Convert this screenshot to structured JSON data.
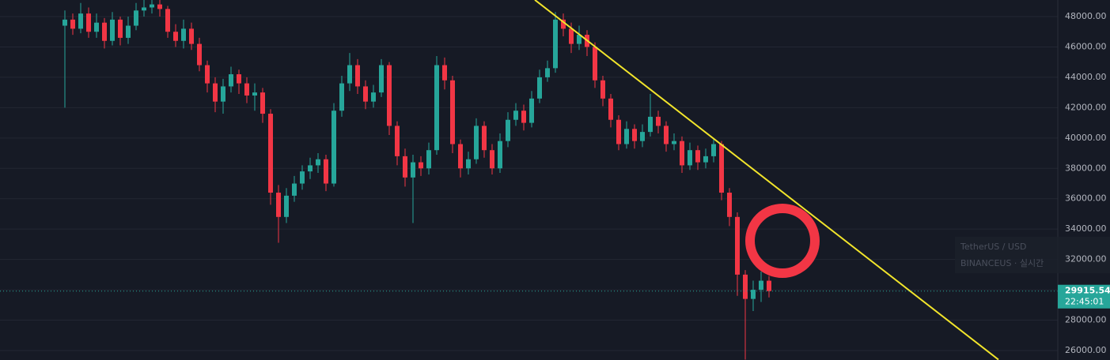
{
  "chart_data": {
    "type": "candlestick",
    "up_color": "#26a69a",
    "down_color": "#f23645",
    "grid": true,
    "xlim": [
      -8.2,
      125.5
    ],
    "ylim": [
      25376,
      49092
    ],
    "yticks": [
      {
        "value": 26000,
        "label": "26000.00"
      },
      {
        "value": 28000,
        "label": "28000.00"
      },
      {
        "value": 30000,
        "label": "30000.00"
      },
      {
        "value": 32000,
        "label": "32000.00"
      },
      {
        "value": 34000,
        "label": "34000.00"
      },
      {
        "value": 36000,
        "label": "36000.00"
      },
      {
        "value": 38000,
        "label": "38000.00"
      },
      {
        "value": 40000,
        "label": "40000.00"
      },
      {
        "value": 42000,
        "label": "42000.00"
      },
      {
        "value": 44000,
        "label": "44000.00"
      },
      {
        "value": 46000,
        "label": "46000.00"
      },
      {
        "value": 48000,
        "label": "48000.00"
      }
    ],
    "open": [
      47400,
      47800,
      47200,
      48200,
      47000,
      47600,
      46400,
      47800,
      46600,
      47400,
      48400,
      48600,
      48800,
      48500,
      47000,
      46400,
      47200,
      46200,
      44800,
      43600,
      42400,
      43400,
      44200,
      43600,
      42800,
      43000,
      41600,
      36400,
      34800,
      36200,
      37000,
      37800,
      38200,
      38600,
      37000,
      41800,
      43600,
      44800,
      43400,
      42400,
      43000,
      44800,
      40800,
      38800,
      37400,
      38400,
      38000,
      39200,
      44800,
      43800,
      39600,
      38000,
      38600,
      40800,
      39200,
      38000,
      39800,
      41200,
      41800,
      41000,
      42600,
      44000,
      44600,
      47800,
      47200,
      46200,
      46800,
      46000,
      43800,
      42600,
      41200,
      39600,
      40600,
      39800,
      40400,
      41400,
      40800,
      39600,
      39800,
      38200,
      39200,
      38400,
      38800,
      39600,
      36400,
      34800,
      31000,
      29400,
      30000,
      30600
    ],
    "high": [
      48400,
      48200,
      48900,
      48600,
      48200,
      47900,
      48300,
      48000,
      48000,
      48900,
      49100,
      49300,
      49200,
      48700,
      47500,
      47800,
      47600,
      46600,
      45100,
      44000,
      43900,
      44700,
      44500,
      44000,
      43600,
      43300,
      41900,
      36900,
      36700,
      37500,
      38200,
      38700,
      39000,
      38900,
      42300,
      44100,
      45600,
      45200,
      43800,
      43500,
      45200,
      45000,
      41100,
      39300,
      38900,
      38800,
      39700,
      45400,
      45300,
      44100,
      39900,
      39100,
      41300,
      41100,
      39600,
      40300,
      41700,
      42300,
      42200,
      43100,
      44500,
      45100,
      48300,
      48200,
      47600,
      47400,
      47100,
      46300,
      44100,
      42900,
      41500,
      41100,
      40900,
      40900,
      42900,
      41800,
      41100,
      40300,
      40100,
      39700,
      39500,
      39300,
      40000,
      39800,
      36700,
      35100,
      31300,
      30600,
      31200,
      30900
    ],
    "low": [
      42000,
      46800,
      46900,
      46600,
      46600,
      45900,
      46100,
      46100,
      46200,
      47100,
      48000,
      48200,
      48000,
      46600,
      46000,
      45900,
      45800,
      44400,
      43000,
      41700,
      41600,
      43000,
      42900,
      42300,
      41800,
      41000,
      35600,
      33100,
      34400,
      35800,
      36600,
      37300,
      37700,
      36500,
      36800,
      41400,
      43100,
      42900,
      41900,
      42000,
      42700,
      40200,
      38200,
      36800,
      34400,
      37500,
      37600,
      38900,
      43200,
      39000,
      37400,
      37600,
      38300,
      38700,
      37600,
      37700,
      39400,
      40800,
      40500,
      40700,
      42300,
      43700,
      44300,
      46700,
      45600,
      45800,
      45400,
      43300,
      42100,
      40700,
      39200,
      39300,
      39300,
      39400,
      40100,
      40300,
      39100,
      39200,
      37700,
      37900,
      37900,
      38000,
      38400,
      35900,
      34200,
      29600,
      25400,
      28600,
      29200,
      29500
    ],
    "close": [
      47800,
      47200,
      48200,
      47000,
      47600,
      46400,
      47800,
      46600,
      47400,
      48400,
      48600,
      48800,
      48500,
      47000,
      46400,
      47200,
      46200,
      44800,
      43600,
      42400,
      43400,
      44200,
      43600,
      42800,
      43000,
      41600,
      36400,
      34800,
      36200,
      37000,
      37800,
      38200,
      38600,
      37000,
      41800,
      43600,
      44800,
      43400,
      42400,
      43000,
      44800,
      40800,
      38800,
      37400,
      38400,
      38000,
      39200,
      44800,
      43800,
      39600,
      38000,
      38600,
      40800,
      39200,
      38000,
      39800,
      41200,
      41800,
      41000,
      42600,
      44000,
      44600,
      47800,
      47200,
      46200,
      46800,
      46000,
      43800,
      42600,
      41200,
      39600,
      40600,
      39800,
      40400,
      41400,
      40800,
      39600,
      39800,
      38200,
      39200,
      38400,
      38800,
      39600,
      36400,
      34800,
      31000,
      29400,
      30000,
      30600,
      29915.54
    ],
    "trendline": {
      "color": "#f2e52b",
      "x": [
        59.4,
        118
      ],
      "y": [
        49100,
        25400
      ]
    },
    "last_price": 29915.54,
    "countdown": "22:45:01",
    "symbol": "TetherUS / USD",
    "exchange": "BINANCEUS · 실시간"
  }
}
